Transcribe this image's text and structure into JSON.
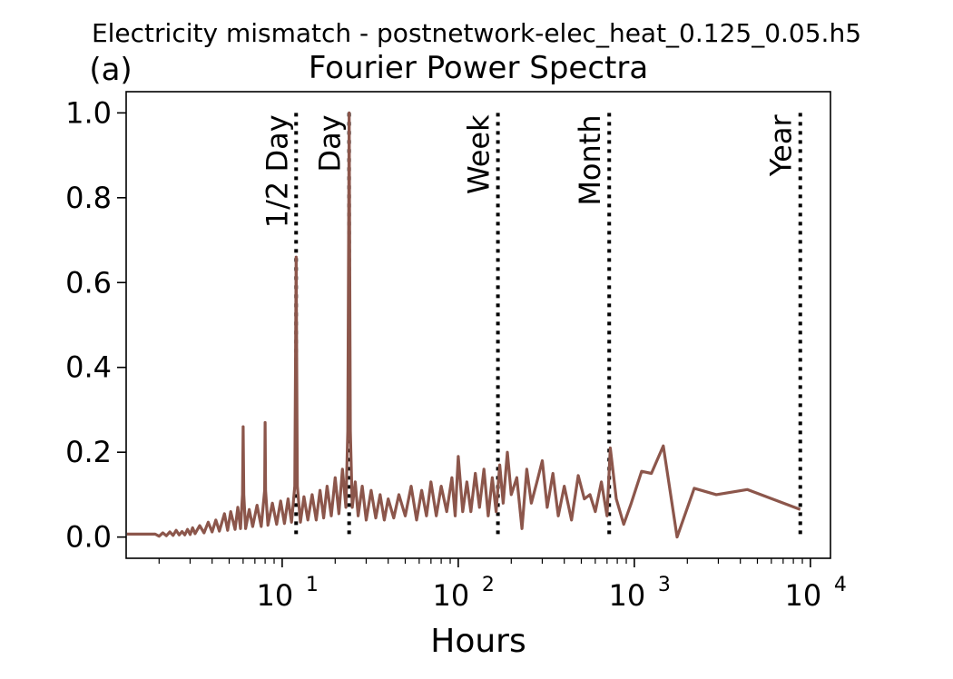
{
  "suptitle": "Electricity mismatch - postnetwork-elec_heat_0.125_0.05.h5",
  "panel_label": "(a)",
  "chart_data": {
    "type": "line",
    "title": "Fourier Power Spectra",
    "xlabel": "Hours",
    "ylabel": "",
    "x_scale": "log",
    "xlim": [
      1.3,
      13000
    ],
    "ylim": [
      -0.05,
      1.05
    ],
    "grid": false,
    "series_color": "#8c564b",
    "ref_line_color": "#000000",
    "x_ticks": [
      {
        "value": 10,
        "base": "10",
        "exp": "1"
      },
      {
        "value": 100,
        "base": "10",
        "exp": "2"
      },
      {
        "value": 1000,
        "base": "10",
        "exp": "3"
      },
      {
        "value": 10000,
        "base": "10",
        "exp": "4"
      }
    ],
    "y_ticks": [
      {
        "value": 0.0,
        "label": "0.0"
      },
      {
        "value": 0.2,
        "label": "0.2"
      },
      {
        "value": 0.4,
        "label": "0.4"
      },
      {
        "value": 0.6,
        "label": "0.6"
      },
      {
        "value": 0.8,
        "label": "0.8"
      },
      {
        "value": 1.0,
        "label": "1.0"
      }
    ],
    "reference_lines": [
      {
        "label": "1/2 Day",
        "x": 12
      },
      {
        "label": "Day",
        "x": 24
      },
      {
        "label": "Week",
        "x": 168
      },
      {
        "label": "Month",
        "x": 720
      },
      {
        "label": "Year",
        "x": 8760
      }
    ],
    "series": [
      {
        "x": [
          1.0,
          1.9,
          2.0,
          2.1,
          2.2,
          2.3,
          2.4,
          2.5,
          2.6,
          2.7,
          2.8,
          2.9,
          3.0,
          3.1,
          3.2,
          3.4,
          3.6,
          3.8,
          4.0,
          4.2,
          4.4,
          4.7,
          4.9,
          5.1,
          5.4,
          5.6,
          5.8,
          5.95,
          6.0,
          6.05,
          6.2,
          6.5,
          6.8,
          7.2,
          7.6,
          7.95,
          8.0,
          8.05,
          8.3,
          8.8,
          9.3,
          9.8,
          10.3,
          10.8,
          11.3,
          11.8,
          12.0,
          12.2,
          12.7,
          13.3,
          14.0,
          14.8,
          15.6,
          16.4,
          17.2,
          18.0,
          19.0,
          20.0,
          21.0,
          22.0,
          23.0,
          23.6,
          24.0,
          24.4,
          25.0,
          26.0,
          27.0,
          28.5,
          30.0,
          32.0,
          34.0,
          36.0,
          38.0,
          40.0,
          43.0,
          46.0,
          50.0,
          54.0,
          58.0,
          62.0,
          66.0,
          70.0,
          75.0,
          80.0,
          86.0,
          92.0,
          96.0,
          100.0,
          106.0,
          112.0,
          118.0,
          125.0,
          132.0,
          140.0,
          148.0,
          156.0,
          164.0,
          172.0,
          180.0,
          190.0,
          200.0,
          215.0,
          230.0,
          245.0,
          260.0,
          280.0,
          300.0,
          320.0,
          345.0,
          370.0,
          400.0,
          440.0,
          480.0,
          520.0,
          560.0,
          600.0,
          650.0,
          700.0,
          730.0,
          790.0,
          870.0,
          960.0,
          1100.0,
          1250.0,
          1460.0,
          1750.0,
          2190.0,
          2920.0,
          4380.0,
          8760.0
        ],
        "y": [
          0.007,
          0.007,
          0.002,
          0.01,
          0.003,
          0.012,
          0.004,
          0.016,
          0.005,
          0.013,
          0.005,
          0.018,
          0.006,
          0.022,
          0.008,
          0.027,
          0.01,
          0.035,
          0.012,
          0.04,
          0.014,
          0.055,
          0.016,
          0.06,
          0.018,
          0.07,
          0.02,
          0.1,
          0.26,
          0.1,
          0.02,
          0.065,
          0.025,
          0.075,
          0.025,
          0.11,
          0.27,
          0.11,
          0.028,
          0.08,
          0.03,
          0.085,
          0.032,
          0.09,
          0.035,
          0.12,
          0.66,
          0.12,
          0.035,
          0.095,
          0.04,
          0.1,
          0.04,
          0.11,
          0.045,
          0.12,
          0.05,
          0.14,
          0.055,
          0.16,
          0.07,
          0.25,
          1.0,
          0.25,
          0.07,
          0.13,
          0.05,
          0.12,
          0.04,
          0.11,
          0.045,
          0.1,
          0.04,
          0.09,
          0.045,
          0.1,
          0.05,
          0.12,
          0.04,
          0.11,
          0.05,
          0.13,
          0.05,
          0.12,
          0.06,
          0.14,
          0.05,
          0.19,
          0.06,
          0.13,
          0.06,
          0.15,
          0.07,
          0.16,
          0.05,
          0.14,
          0.06,
          0.17,
          0.08,
          0.2,
          0.1,
          0.14,
          0.02,
          0.16,
          0.08,
          0.13,
          0.18,
          0.07,
          0.15,
          0.05,
          0.12,
          0.04,
          0.145,
          0.09,
          0.1,
          0.06,
          0.13,
          0.05,
          0.21,
          0.09,
          0.03,
          0.08,
          0.155,
          0.15,
          0.215,
          0.0,
          0.115,
          0.1,
          0.112,
          0.065
        ]
      }
    ]
  }
}
